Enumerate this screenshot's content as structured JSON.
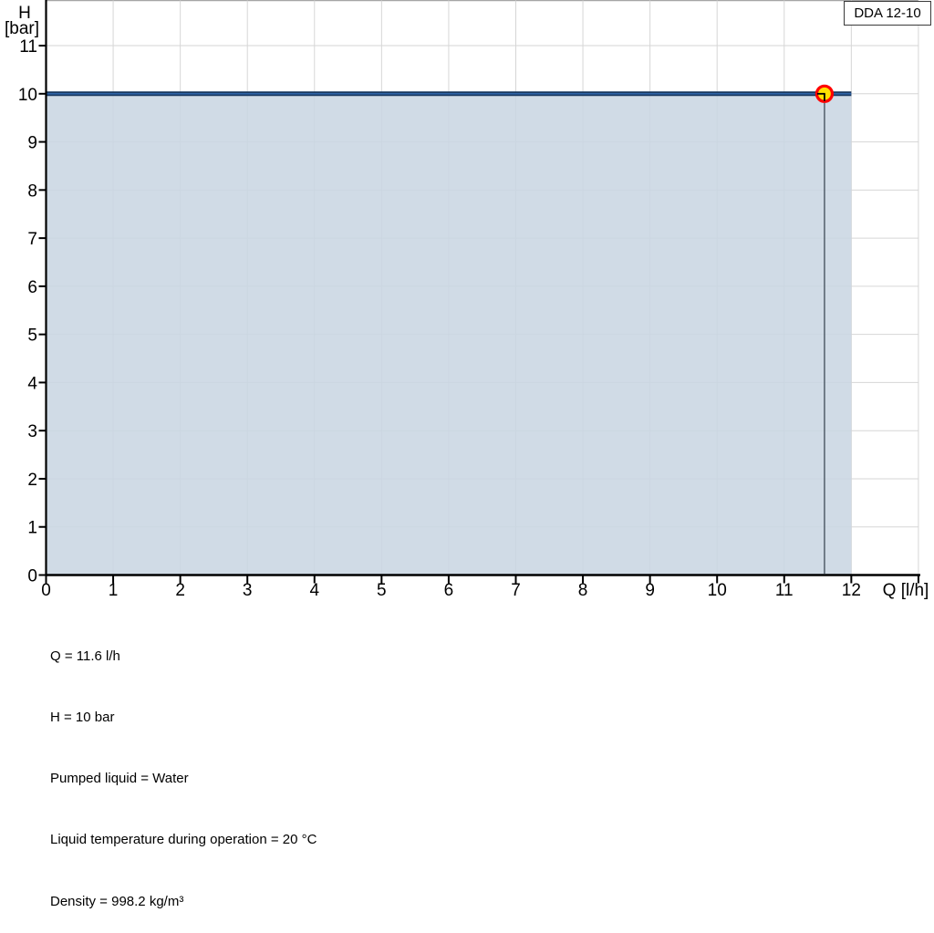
{
  "chart_data": {
    "type": "line",
    "title": "DDA 12-10",
    "xlabel": "Q [l/h]",
    "ylabel": "H [bar]",
    "ylabel_lines": [
      "H",
      "[bar]"
    ],
    "xlim": [
      0,
      13
    ],
    "ylim": [
      0,
      11.95
    ],
    "x_ticks": [
      0,
      1,
      2,
      3,
      4,
      5,
      6,
      7,
      8,
      9,
      10,
      11,
      12
    ],
    "y_ticks": [
      0,
      1,
      2,
      3,
      4,
      5,
      6,
      7,
      8,
      9,
      10,
      11
    ],
    "grid": true,
    "legend_position": "none",
    "series": [
      {
        "name": "DDA 12-10",
        "x": [
          0,
          12
        ],
        "y": [
          10,
          10
        ],
        "color": "#17375e",
        "core_color": "#2f63a5",
        "fill_to_zero": true,
        "fill_color": "rgba(201,214,227,0.88)"
      }
    ],
    "operating_point": {
      "q": 11.6,
      "h": 10,
      "marker_fill": "#ffe100",
      "marker_stroke": "#ff0000",
      "drop_line_color": "#5a6672"
    },
    "colors": {
      "axis": "#000000",
      "grid": "#d6d6d6",
      "top_border": "#a6a6a6",
      "text": "#000000"
    },
    "annotations": [
      "Q = 11.6 l/h",
      "H = 10 bar",
      "Pumped liquid = Water",
      "Liquid temperature during operation = 20 °C",
      "Density = 998.2 kg/m³"
    ]
  }
}
